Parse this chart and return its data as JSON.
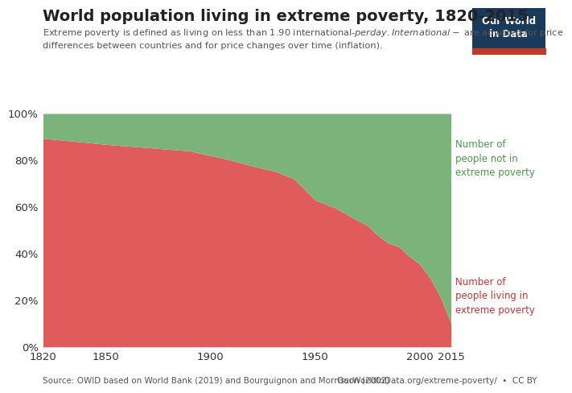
{
  "title": "World population living in extreme poverty, 1820-2015",
  "subtitle": "Extreme poverty is defined as living on less than 1.90 international-$ per day. International-$ are adjusted for price\ndifferences between countries and for price changes over time (inflation).",
  "years": [
    1820,
    1850,
    1870,
    1890,
    1900,
    1910,
    1920,
    1930,
    1940,
    1950,
    1960,
    1970,
    1975,
    1980,
    1985,
    1990,
    1995,
    2000,
    2005,
    2010,
    2015
  ],
  "poverty_share": [
    0.894,
    0.868,
    0.854,
    0.84,
    0.82,
    0.8,
    0.775,
    0.755,
    0.72,
    0.63,
    0.594,
    0.544,
    0.52,
    0.478,
    0.445,
    0.43,
    0.388,
    0.355,
    0.295,
    0.213,
    0.1
  ],
  "poverty_color": "#e05c5c",
  "not_poverty_color": "#7bb37b",
  "source_text": "Source: OWID based on World Bank (2019) and Bourguignon and Morrisson (2002)",
  "owid_url": "OurWorldInData.org/extreme-poverty/  •  CC BY",
  "label_not_poverty": "Number of\npeople not in\nextreme poverty",
  "label_poverty": "Number of\npeople living in\nextreme poverty",
  "label_not_poverty_color": "#4a9a4a",
  "label_poverty_color": "#cc3333",
  "owid_box_color": "#1a3a5c",
  "owid_box_text": "Our World\nin Data",
  "owid_underline_color": "#c0392b",
  "xlim": [
    1820,
    2015
  ],
  "ylim": [
    0,
    1
  ],
  "yticks": [
    0,
    0.2,
    0.4,
    0.6,
    0.8,
    1.0
  ],
  "ytick_labels": [
    "0%",
    "20%",
    "40%",
    "60%",
    "80%",
    "100%"
  ],
  "xticks": [
    1820,
    1850,
    1900,
    1950,
    2000,
    2015
  ],
  "title_fontsize": 14,
  "subtitle_fontsize": 8.2,
  "tick_fontsize": 9.5,
  "label_fontsize": 8.5,
  "source_fontsize": 7.5
}
